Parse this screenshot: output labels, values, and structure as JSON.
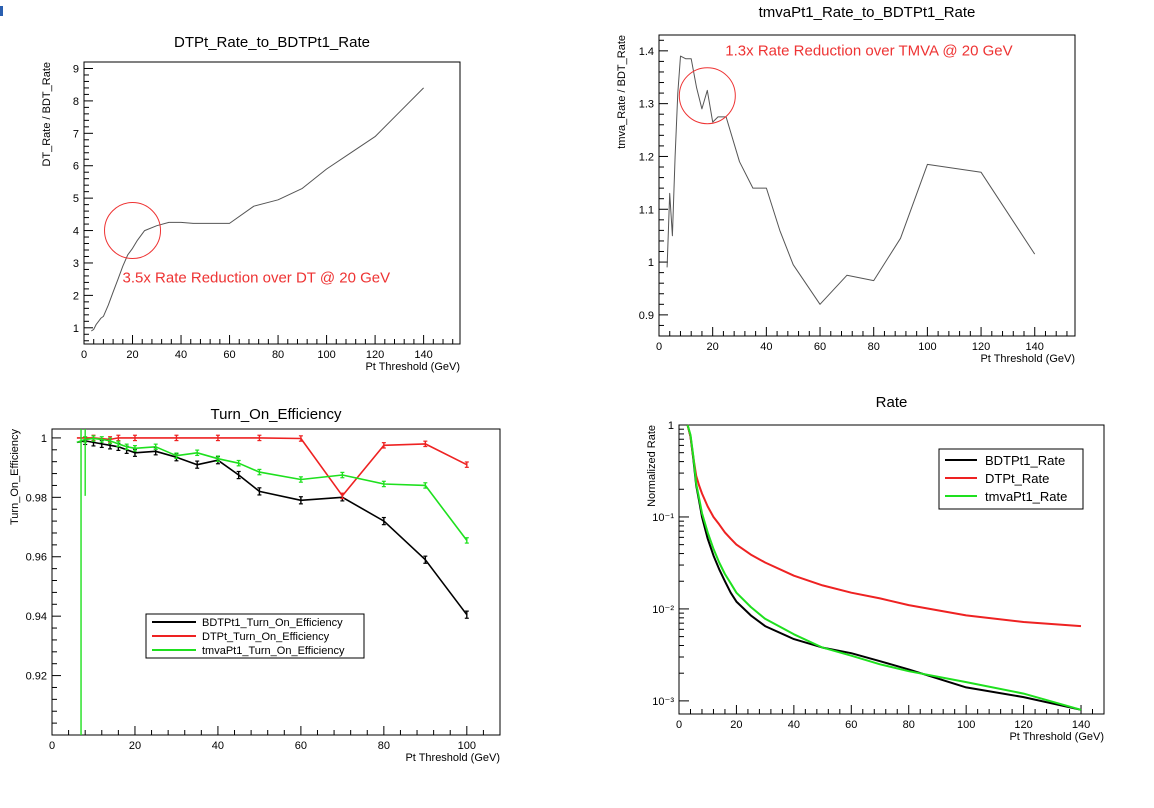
{
  "colors": {
    "black": "#000000",
    "red": "#ee2222",
    "green": "#1ee01e",
    "grey_line": "#555555",
    "annotation": "#ee3333"
  },
  "chart_data": [
    {
      "type": "line",
      "title": "DTPt_Rate_to_BDTPt1_Rate",
      "xlabel": "Pt Threshold (GeV)",
      "ylabel": "DT_Rate / BDT_Rate",
      "xlim": [
        0,
        155
      ],
      "ylim": [
        0.5,
        9.2
      ],
      "xticks": [
        0,
        20,
        40,
        60,
        80,
        100,
        120,
        140
      ],
      "yticks": [
        1,
        2,
        3,
        4,
        5,
        6,
        7,
        8,
        9
      ],
      "series": [
        {
          "values_x": [
            3,
            4,
            5,
            6,
            7,
            8,
            10,
            12,
            14,
            16,
            18,
            20,
            22,
            25,
            30,
            35,
            40,
            45,
            50,
            60,
            70,
            80,
            90,
            100,
            110,
            120,
            130,
            140
          ],
          "values_y": [
            0.9,
            0.95,
            1.1,
            1.2,
            1.3,
            1.35,
            1.7,
            2.1,
            2.5,
            2.9,
            3.25,
            3.45,
            3.7,
            4.0,
            4.15,
            4.25,
            4.25,
            4.22,
            4.22,
            4.22,
            4.75,
            4.95,
            5.3,
            5.9,
            6.4,
            6.9,
            7.65,
            8.4
          ]
        }
      ],
      "annotation": {
        "text": "3.5x Rate Reduction over DT @ 20 GeV",
        "x": 20,
        "y": 4.0
      }
    },
    {
      "type": "line",
      "title": "tmvaPt1_Rate_to_BDTPt1_Rate",
      "xlabel": "Pt Threshold (GeV)",
      "ylabel": "tmva_Rate / BDT_Rate",
      "xlim": [
        0,
        155
      ],
      "ylim": [
        0.86,
        1.43
      ],
      "xticks": [
        0,
        20,
        40,
        60,
        80,
        100,
        120,
        140
      ],
      "yticks": [
        0.9,
        1,
        1.1,
        1.2,
        1.3,
        1.4
      ],
      "ytick_labels": [
        "0.9",
        "1",
        "1.1",
        "1.2",
        "1.3",
        "1.4"
      ],
      "series": [
        {
          "values_x": [
            3,
            4,
            5,
            6,
            7,
            8,
            10,
            12,
            14,
            16,
            18,
            20,
            22,
            25,
            30,
            35,
            40,
            45,
            50,
            60,
            70,
            80,
            90,
            100,
            120,
            140
          ],
          "values_y": [
            0.99,
            1.13,
            1.05,
            1.2,
            1.32,
            1.39,
            1.385,
            1.385,
            1.33,
            1.29,
            1.325,
            1.265,
            1.275,
            1.275,
            1.19,
            1.14,
            1.14,
            1.06,
            0.995,
            0.92,
            0.975,
            0.965,
            1.045,
            1.185,
            1.17,
            1.015
          ]
        }
      ],
      "annotation": {
        "text": "1.3x Rate Reduction over TMVA @ 20 GeV",
        "x": 18,
        "y": 1.315
      }
    },
    {
      "type": "line",
      "title": "Turn_On_Efficiency",
      "xlabel": "Pt Threshold (GeV)",
      "ylabel": "Turn_On_Efficiency",
      "xlim": [
        0,
        108
      ],
      "ylim": [
        0.9,
        1.003
      ],
      "xticks": [
        0,
        20,
        40,
        60,
        80,
        100
      ],
      "yticks": [
        0.92,
        0.94,
        0.96,
        0.98,
        1
      ],
      "ytick_labels": [
        "0.92",
        "0.94",
        "0.96",
        "0.98",
        "1"
      ],
      "legend_position": "bottom-left",
      "series": [
        {
          "name": "BDTPt1_Turn_On_Efficiency",
          "color": "#000000",
          "x": [
            6,
            8,
            10,
            12,
            14,
            16,
            18,
            20,
            25,
            30,
            35,
            40,
            45,
            50,
            60,
            70,
            80,
            90,
            100
          ],
          "y": [
            0.9985,
            0.999,
            0.9985,
            0.998,
            0.9975,
            0.997,
            0.996,
            0.995,
            0.9955,
            0.9935,
            0.991,
            0.9925,
            0.9875,
            0.982,
            0.979,
            0.98,
            0.972,
            0.959,
            0.9405
          ]
        },
        {
          "name": "DTPt_Turn_On_Efficiency",
          "color": "#ee2222",
          "x": [
            6,
            10,
            14,
            16,
            20,
            30,
            40,
            50,
            60,
            70,
            80,
            90,
            100
          ],
          "y": [
            1.0,
            1.0,
            0.9995,
            1.0,
            1.0,
            1.0,
            1.0,
            1.0,
            0.9998,
            0.9805,
            0.9975,
            0.998,
            0.991
          ]
        },
        {
          "name": "tmvaPt1_Turn_On_Efficiency",
          "color": "#1ee01e",
          "x": [
            6,
            8,
            10,
            12,
            14,
            16,
            18,
            20,
            25,
            30,
            35,
            40,
            45,
            50,
            60,
            70,
            80,
            90,
            100
          ],
          "y": [
            0.9985,
            0.9995,
            0.9998,
            0.9995,
            0.999,
            0.998,
            0.997,
            0.9965,
            0.997,
            0.994,
            0.995,
            0.993,
            0.9915,
            0.9885,
            0.986,
            0.9875,
            0.9845,
            0.984,
            0.9655
          ]
        }
      ]
    },
    {
      "type": "line",
      "title": "Rate",
      "xlabel": "Pt Threshold (GeV)",
      "ylabel": "Normalized Rate",
      "xscale": "linear",
      "yscale": "log",
      "xlim": [
        0,
        148
      ],
      "ylim": [
        0.00072,
        1.0
      ],
      "xticks": [
        0,
        20,
        40,
        60,
        80,
        100,
        120,
        140
      ],
      "yticks": [
        0.001,
        0.01,
        0.1,
        1
      ],
      "ytick_labels": [
        "10⁻³",
        "10⁻²",
        "10⁻¹",
        "1"
      ],
      "legend_position": "top-right",
      "series": [
        {
          "name": "BDTPt1_Rate",
          "color": "#000000",
          "x": [
            3,
            4,
            5,
            6,
            7,
            8,
            10,
            12,
            14,
            16,
            18,
            20,
            25,
            30,
            40,
            50,
            60,
            70,
            80,
            100,
            120,
            140
          ],
          "y": [
            1.0,
            0.75,
            0.42,
            0.22,
            0.15,
            0.1,
            0.058,
            0.038,
            0.027,
            0.02,
            0.015,
            0.012,
            0.0085,
            0.0065,
            0.0047,
            0.0038,
            0.0033,
            0.0027,
            0.0022,
            0.0014,
            0.0011,
            0.0008
          ]
        },
        {
          "name": "DTPt_Rate",
          "color": "#ee2222",
          "x": [
            3,
            4,
            5,
            6,
            7,
            8,
            10,
            12,
            14,
            16,
            18,
            20,
            25,
            30,
            40,
            50,
            60,
            70,
            80,
            100,
            120,
            140
          ],
          "y": [
            1.0,
            0.75,
            0.44,
            0.28,
            0.22,
            0.18,
            0.13,
            0.1,
            0.083,
            0.068,
            0.058,
            0.05,
            0.039,
            0.032,
            0.023,
            0.018,
            0.015,
            0.013,
            0.011,
            0.0085,
            0.0072,
            0.0065
          ]
        },
        {
          "name": "tmvaPt1_Rate",
          "color": "#1ee01e",
          "x": [
            3,
            4,
            5,
            6,
            7,
            8,
            10,
            12,
            14,
            16,
            18,
            20,
            25,
            30,
            40,
            50,
            60,
            70,
            80,
            100,
            120,
            140
          ],
          "y": [
            1.0,
            0.78,
            0.45,
            0.23,
            0.16,
            0.11,
            0.068,
            0.045,
            0.032,
            0.024,
            0.019,
            0.015,
            0.0105,
            0.0078,
            0.0053,
            0.0038,
            0.0031,
            0.0025,
            0.0021,
            0.0016,
            0.0012,
            0.0008
          ]
        }
      ]
    }
  ]
}
